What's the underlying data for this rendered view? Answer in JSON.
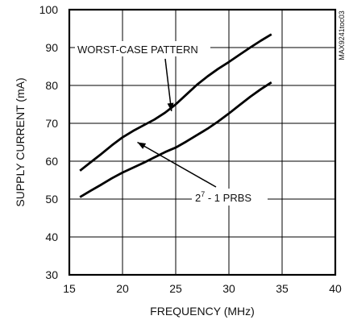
{
  "chart_data": {
    "type": "line",
    "xlabel": "FREQUENCY (MHz)",
    "ylabel": "SUPPLY CURRENT (mA)",
    "xlim": [
      15,
      40
    ],
    "ylim": [
      30,
      100
    ],
    "xticks": [
      15,
      20,
      25,
      30,
      35,
      40
    ],
    "yticks": [
      30,
      40,
      50,
      60,
      70,
      80,
      90,
      100
    ],
    "grid": true,
    "side_label": "MAX9241toc03",
    "series": [
      {
        "name": "WORST-CASE PATTERN",
        "x": [
          16,
          17,
          18,
          19,
          20,
          21,
          22,
          23,
          24,
          25,
          26,
          27,
          28,
          29,
          30,
          31,
          32,
          33,
          34
        ],
        "y": [
          57.5,
          59.7,
          61.9,
          64.2,
          66.3,
          68.0,
          69.5,
          71.0,
          72.8,
          75.0,
          77.6,
          80.2,
          82.4,
          84.4,
          86.2,
          88.1,
          90.0,
          91.8,
          93.5
        ]
      },
      {
        "name": "2^7 - 1 PRBS",
        "label_base": "2",
        "label_sup": "7",
        "label_rest": " - 1 PRBS",
        "x": [
          16,
          17,
          18,
          19,
          20,
          21,
          22,
          23,
          24,
          25,
          26,
          27,
          28,
          29,
          30,
          31,
          32,
          33,
          34
        ],
        "y": [
          50.5,
          52.2,
          53.8,
          55.5,
          57.0,
          58.3,
          59.6,
          61.0,
          62.4,
          63.6,
          65.2,
          66.9,
          68.6,
          70.5,
          72.6,
          74.8,
          77.0,
          79.0,
          80.8
        ]
      }
    ]
  }
}
